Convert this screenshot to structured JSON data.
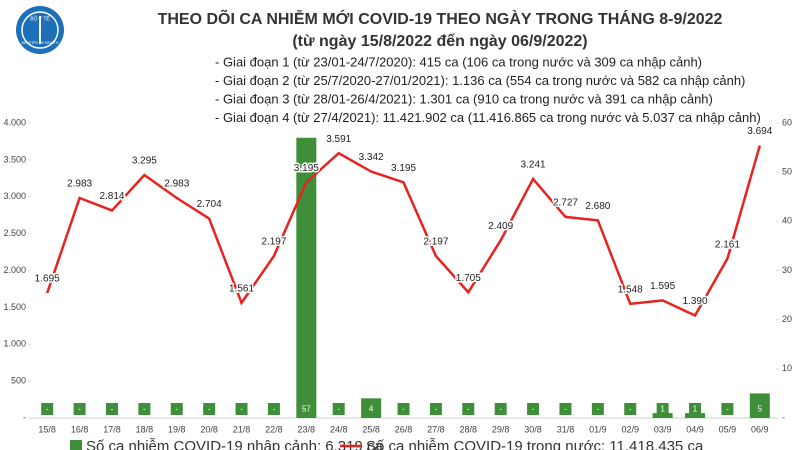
{
  "chart_data": {
    "type": "bar-line",
    "title": "THEO DÕI CA NHIỄM MỚI COVID-19 THEO NGÀY TRONG THÁNG 8-9/2022",
    "subtitle": "(từ ngày 15/8/2022 đến ngày 06/9/2022)",
    "logo_texts": [
      "BỘ Y TẾ",
      "MINISTRY OF HEALTH"
    ],
    "annotations": [
      "- Giai đoạn 1 (từ 23/01-24/7/2020): 415 ca (106 ca trong nước và 309 ca nhập cảnh)",
      "- Giai đoạn 2 (từ 25/7/2020-27/01/2021): 1.136 ca (554 ca trong nước và 582 ca nhập cảnh)",
      "- Giai đoạn 3 (từ 28/01-26/4/2021): 1.301 ca (910 ca trong nước và 391 ca nhập cảnh)",
      "- Giai đoạn 4 (từ 27/4/2021): 11.421.902 ca (11.416.865 ca trong nước và 5.037 ca nhập cảnh)"
    ],
    "categories": [
      "15/8",
      "16/8",
      "17/8",
      "18/8",
      "19/8",
      "20/8",
      "21/8",
      "22/8",
      "23/8",
      "24/8",
      "25/8",
      "26/8",
      "27/8",
      "28/8",
      "29/8",
      "30/8",
      "31/8",
      "01/9",
      "02/9",
      "03/9",
      "04/9",
      "05/9",
      "06/9"
    ],
    "series": [
      {
        "name": "Số ca nhiễm COVID-19 nhập cảnh: 6.319 ca",
        "type": "bar",
        "axis": "y2",
        "color": "#3f8f3a",
        "values": [
          0,
          0,
          0,
          0,
          0,
          0,
          0,
          0,
          57,
          0,
          4,
          0,
          0,
          0,
          0,
          0,
          0,
          0,
          0,
          1,
          1,
          0,
          5
        ],
        "value_labels": [
          "-",
          "-",
          "-",
          "-",
          "-",
          "-",
          "-",
          "-",
          "57",
          "-",
          "4",
          "-",
          "-",
          "-",
          "-",
          "-",
          "-",
          "-",
          "-",
          "1",
          "1",
          "-",
          "5"
        ]
      },
      {
        "name": "Số ca nhiễm COVID-19 trong nước: 11.418.435 ca",
        "type": "line",
        "color": "#e8231f",
        "values": [
          1695,
          2983,
          2814,
          3295,
          2983,
          2704,
          1561,
          2197,
          3195,
          3591,
          3342,
          3195,
          2197,
          1705,
          2409,
          3241,
          2727,
          2680,
          1548,
          1595,
          1390,
          2161,
          3694
        ],
        "value_labels": [
          "1.695",
          "2.983",
          "2.814",
          "3.295",
          "2.983",
          "2.704",
          "1.561",
          "2.197",
          "3.195",
          "3.591",
          "3.342",
          "3.195",
          "2.197",
          "1.705",
          "2.409",
          "3.241",
          "2.727",
          "2.680",
          "1.548",
          "1.595",
          "1.390",
          "2.161",
          "3.694"
        ]
      }
    ],
    "ylim": [
      0,
      4000
    ],
    "yticks": [
      {
        "value": 0,
        "label": "-"
      },
      500,
      {
        "value": 1000,
        "label": "1.000"
      },
      {
        "value": 1500,
        "label": "1.500"
      },
      {
        "value": 2000,
        "label": "2.000"
      },
      {
        "value": 2500,
        "label": "2.500"
      },
      {
        "value": 3000,
        "label": "3.000"
      },
      {
        "value": 3500,
        "label": "3.500"
      },
      {
        "value": 4000,
        "label": "4.000"
      }
    ],
    "y2lim": [
      0,
      60
    ],
    "y2ticks": [
      {
        "value": 0,
        "label": "-"
      },
      10,
      20,
      30,
      40,
      50,
      60
    ]
  }
}
